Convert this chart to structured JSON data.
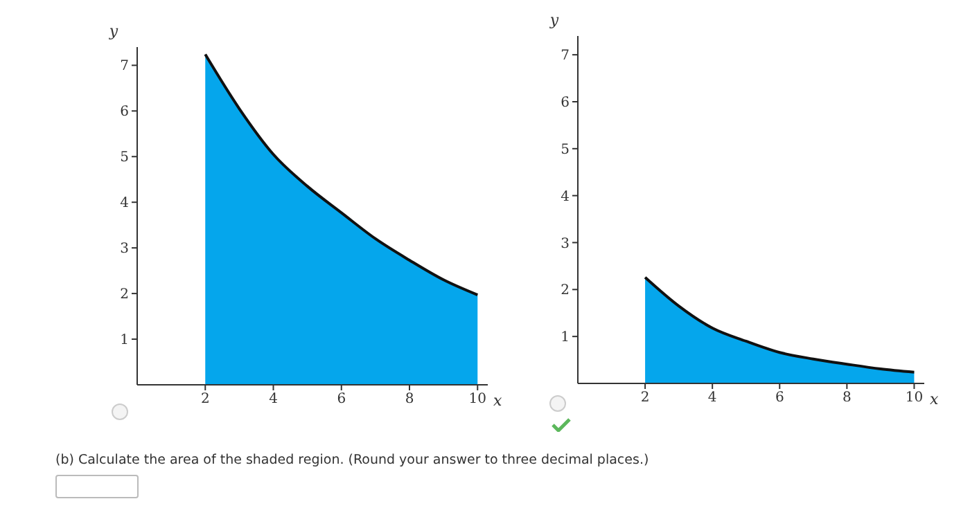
{
  "chart_data": [
    {
      "type": "area",
      "xlabel": "x",
      "ylabel": "y",
      "x": [
        2,
        3,
        4,
        5,
        6,
        7,
        8,
        9,
        10
      ],
      "values": [
        7.24,
        6.05,
        5.05,
        4.35,
        3.77,
        3.2,
        2.73,
        2.3,
        1.97
      ],
      "color": "#05a6ec",
      "xlim": [
        0,
        10.3
      ],
      "ylim": [
        0,
        7.4
      ],
      "xticks": [
        2,
        4,
        6,
        8,
        10
      ],
      "yticks": [
        1,
        2,
        3,
        4,
        5,
        6,
        7
      ]
    },
    {
      "type": "area",
      "xlabel": "x",
      "ylabel": "y",
      "x": [
        2,
        3,
        4,
        5,
        6,
        7,
        8,
        9,
        10
      ],
      "values": [
        2.26,
        1.65,
        1.18,
        0.9,
        0.66,
        0.52,
        0.41,
        0.31,
        0.24
      ],
      "color": "#05a6ec",
      "xlim": [
        0,
        10.3
      ],
      "ylim": [
        0,
        7.4
      ],
      "xticks": [
        2,
        4,
        6,
        8,
        10
      ],
      "yticks": [
        1,
        2,
        3,
        4,
        5,
        6,
        7
      ],
      "annotations": [
        "(b) Calculate the area of the shaded region. (Round your answer to three decimal places.)"
      ]
    }
  ]
}
